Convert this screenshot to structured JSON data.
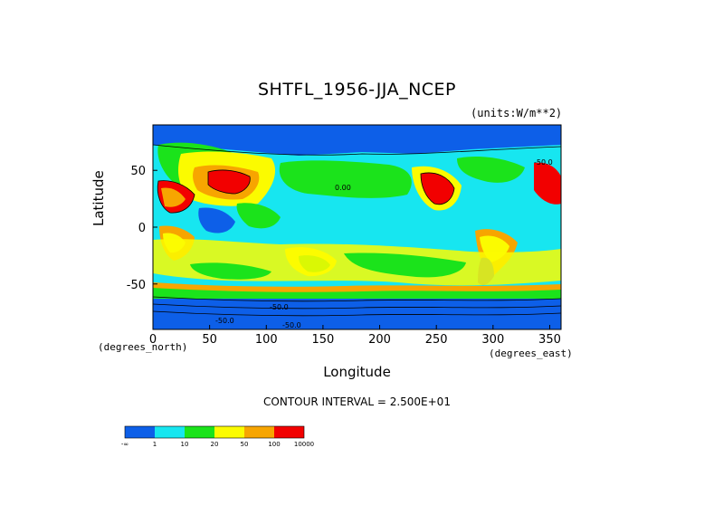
{
  "chart_data": {
    "type": "heatmap",
    "title": "SHTFL_1956-JJA_NCEP",
    "units": "(units:W/m**2)",
    "xlabel": "Longitude",
    "ylabel": "Latitude",
    "x_unit_note": "(degrees_east)",
    "y_unit_note": "(degrees_north)",
    "xlim": [
      0,
      360
    ],
    "ylim": [
      -90,
      90
    ],
    "x_ticks": [
      0,
      50,
      100,
      150,
      200,
      250,
      300,
      350
    ],
    "y_ticks": [
      -50,
      0,
      50
    ],
    "contour_interval": "CONTOUR INTERVAL = 2.500E+01",
    "contour_labels": [
      "0.00",
      "-50.0",
      "-50.0",
      "-50.0",
      "-50.0"
    ],
    "colorbar": {
      "colors": [
        "#0d5fe8",
        "#17e6f0",
        "#1be31b",
        "#fbfb00",
        "#f7a500",
        "#f20000"
      ],
      "labels": [
        "-∞",
        "1",
        "10",
        "20",
        "50",
        "100",
        "10000"
      ]
    },
    "grid": false
  }
}
